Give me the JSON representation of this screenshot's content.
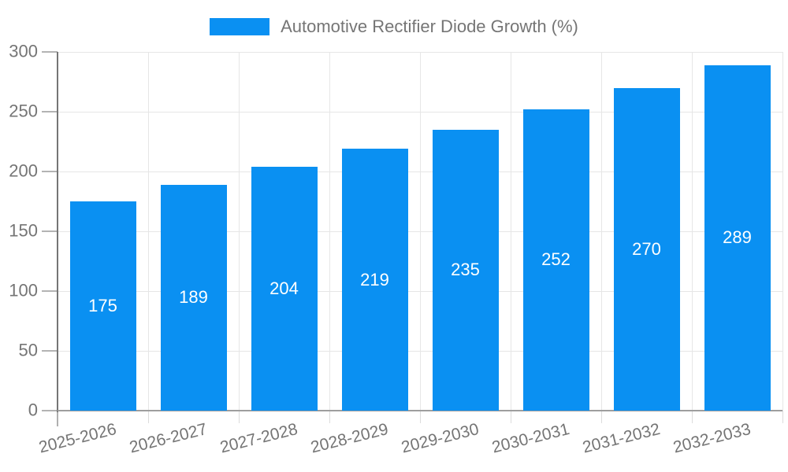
{
  "chart_data": {
    "type": "bar",
    "title": "Automotive Rectifier Diode Growth (%)",
    "categories": [
      "2025-2026",
      "2026-2027",
      "2027-2028",
      "2028-2029",
      "2029-2030",
      "2030-2031",
      "2031-2032",
      "2032-2033"
    ],
    "values": [
      175,
      189,
      204,
      219,
      235,
      252,
      270,
      289
    ],
    "xlabel": "",
    "ylabel": "",
    "ylim": [
      0,
      300
    ],
    "yticks": [
      0,
      50,
      100,
      150,
      200,
      250,
      300
    ],
    "grid": true,
    "legend_position": "top",
    "colors": {
      "bar": "#0a90f2",
      "bar_value_text": "#ffffff",
      "axis_text": "#757575",
      "gridline": "#e6e6e6",
      "y_axis_line": "#757575",
      "baseline": "#9e9e9e"
    }
  }
}
